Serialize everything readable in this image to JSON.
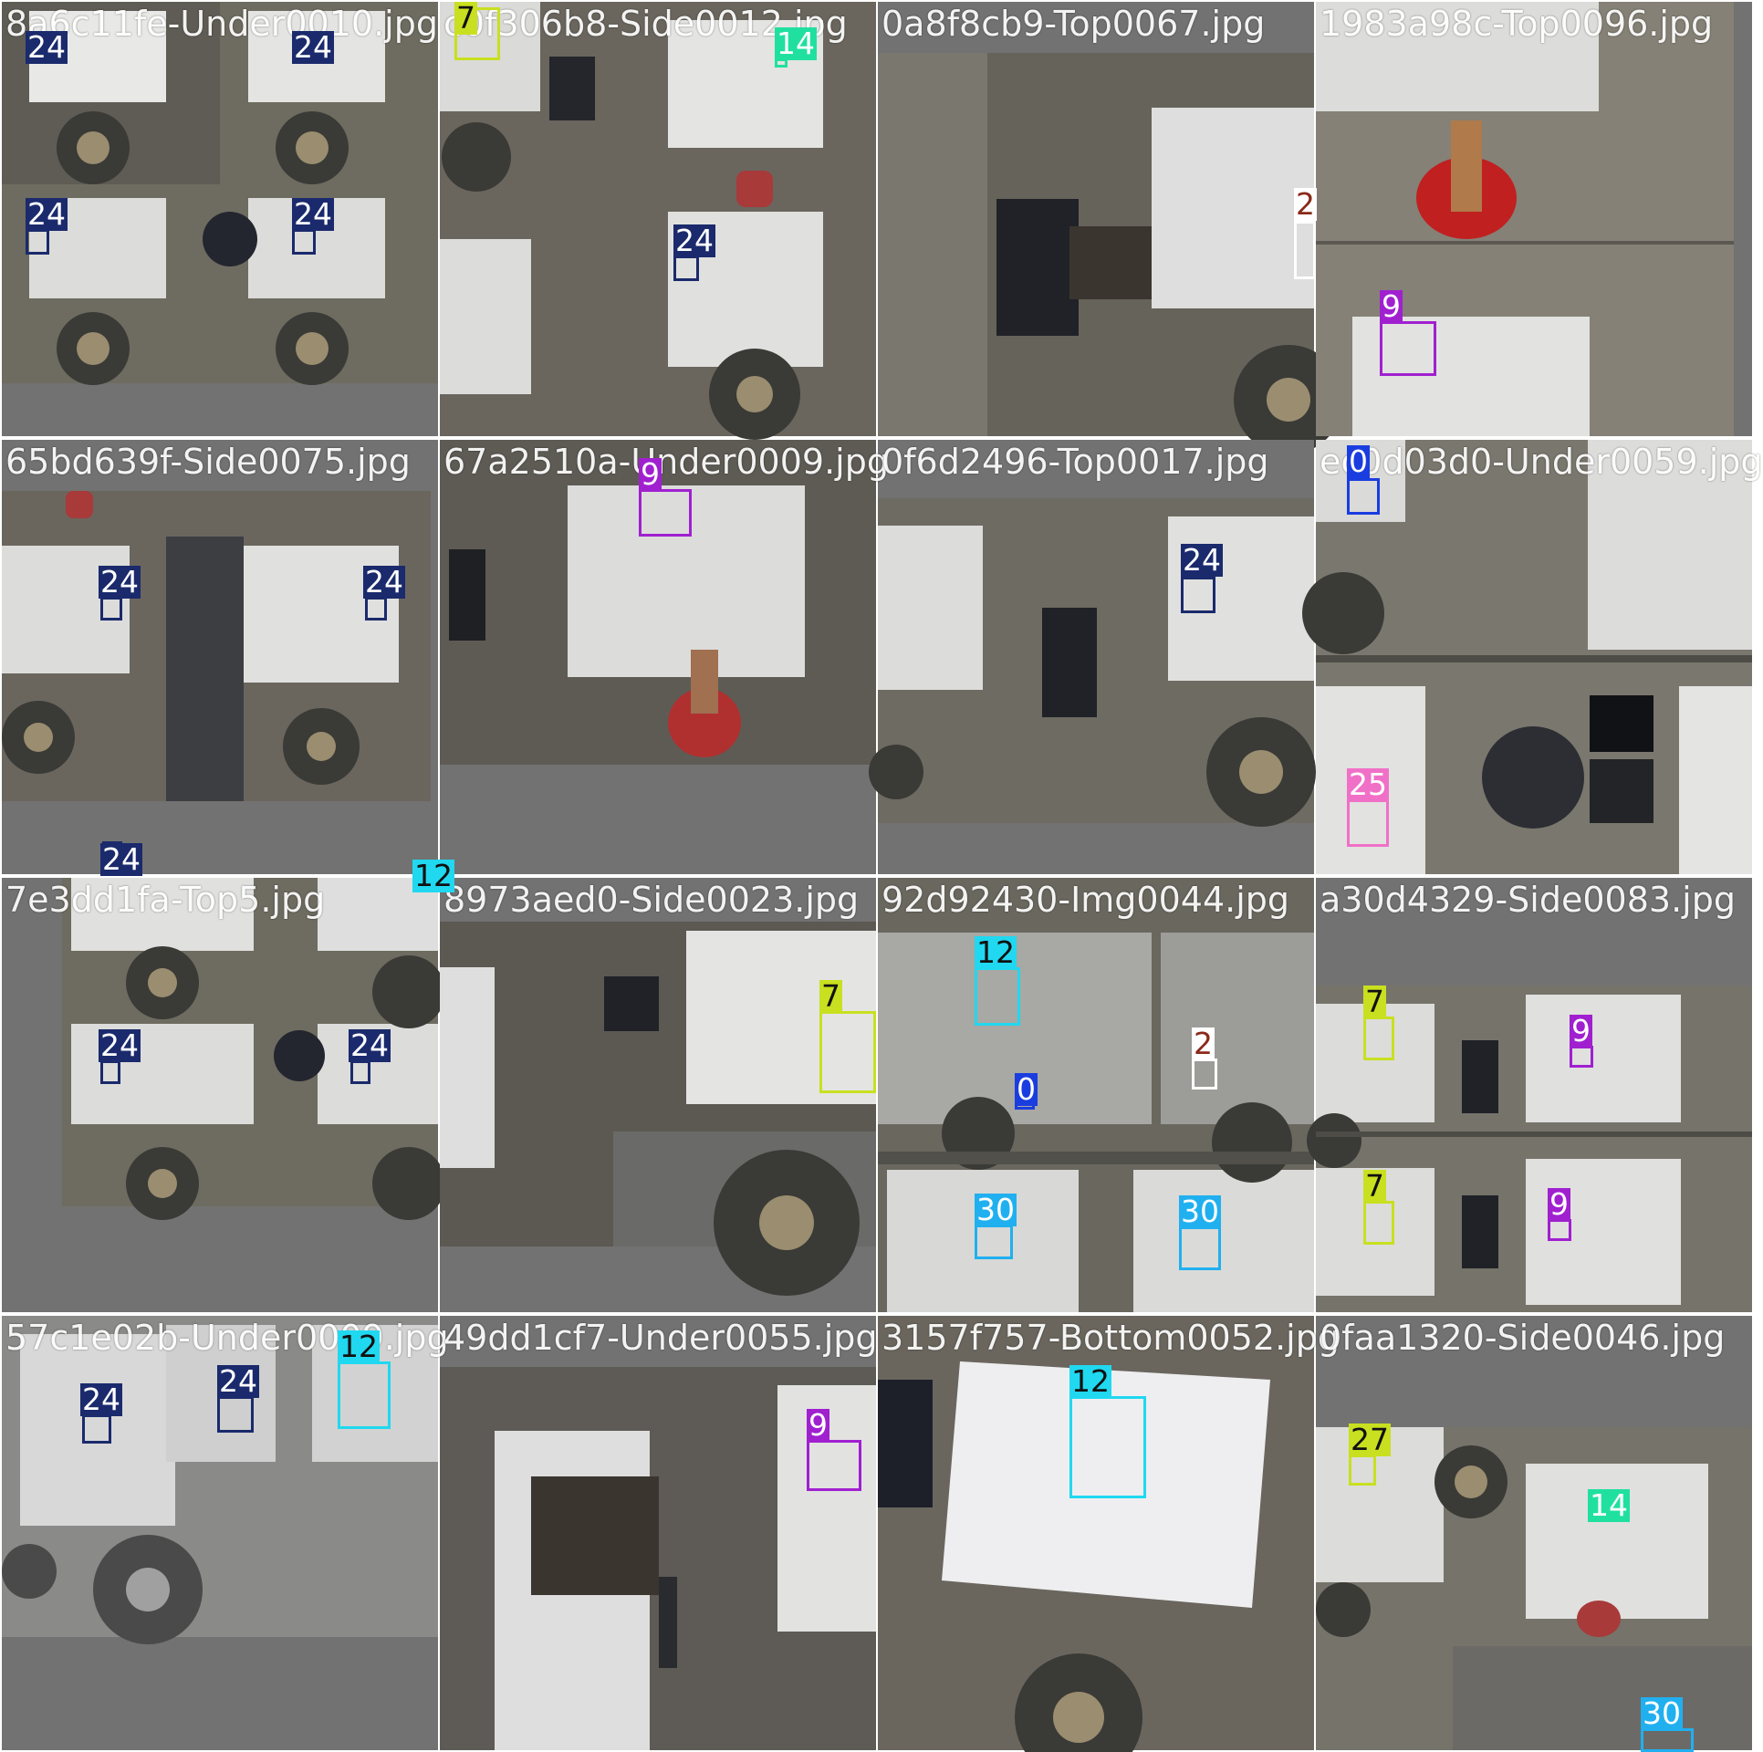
{
  "class_colors": {
    "0": "#1a3de0",
    "2": "#ffffff",
    "7": "#c8e020",
    "9": "#a020d0",
    "12": "#20d8f0",
    "14": "#20e0a0",
    "24": "#1a2a6c",
    "25": "#f070c8",
    "27": "#c8e020",
    "30": "#20b0f0"
  },
  "tiles": [
    {
      "filename": "8a6c11fe-Under0010.jpg",
      "labels": [
        "24",
        "24",
        "24",
        "24"
      ]
    },
    {
      "filename": "c0f306b8-Side0012.jpg",
      "labels": [
        "7",
        "14",
        "24"
      ]
    },
    {
      "filename": "0a8f8cb9-Top0067.jpg",
      "labels": [
        "2"
      ]
    },
    {
      "filename": "1983a98c-Top0096.jpg",
      "labels": [
        "9"
      ]
    },
    {
      "filename": "65bd639f-Side0075.jpg",
      "labels": [
        "24",
        "24",
        "24"
      ]
    },
    {
      "filename": "67a2510a-Under0009.jpg",
      "labels": [
        "9"
      ]
    },
    {
      "filename": "0f6d2496-Top0017.jpg",
      "labels": [
        "24"
      ]
    },
    {
      "filename": "ec0d03d0-Under0059.jpg",
      "labels": [
        "0",
        "25"
      ]
    },
    {
      "filename": "7e3dd1fa-Top5.jpg",
      "labels": [
        "24",
        "24",
        "12"
      ]
    },
    {
      "filename": "8973aed0-Side0023.jpg",
      "labels": [
        "7"
      ]
    },
    {
      "filename": "92d92430-Img0044.jpg",
      "labels": [
        "12",
        "0",
        "2",
        "30",
        "30"
      ]
    },
    {
      "filename": "a30d4329-Side0083.jpg",
      "labels": [
        "7",
        "9",
        "7",
        "9"
      ]
    },
    {
      "filename": "57c1e02b-Under0009.jpg",
      "labels": [
        "24",
        "24",
        "12"
      ]
    },
    {
      "filename": "49dd1cf7-Under0055.jpg",
      "labels": [
        "9"
      ]
    },
    {
      "filename": "3157f757-Bottom0052.jpg",
      "labels": [
        "12"
      ]
    },
    {
      "filename": "0faa1320-Side0046.jpg",
      "labels": [
        "27",
        "14",
        "30"
      ]
    }
  ]
}
